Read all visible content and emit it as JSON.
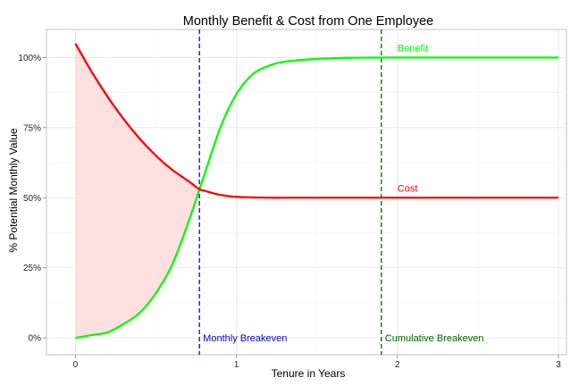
{
  "chart_data": {
    "type": "line",
    "title": "Monthly Benefit & Cost from One Employee",
    "xlabel": "Tenure in Years",
    "ylabel": "% Potential Monthly Value",
    "xlim": [
      -0.18,
      3.05
    ],
    "ylim": [
      -0.06,
      1.1
    ],
    "x_ticks": [
      0,
      1,
      2,
      3
    ],
    "x_tick_labels": [
      "0",
      "1",
      "2",
      "3"
    ],
    "y_ticks": [
      0,
      0.25,
      0.5,
      0.75,
      1.0
    ],
    "y_tick_labels": [
      "0%",
      "25%",
      "50%",
      "75%",
      "100%"
    ],
    "grid": true,
    "x": [
      0,
      0.1,
      0.2,
      0.3,
      0.4,
      0.5,
      0.6,
      0.7,
      0.77,
      0.8,
      0.9,
      1.0,
      1.1,
      1.2,
      1.3,
      1.5,
      1.7,
      2.0,
      2.5,
      3.0
    ],
    "series": [
      {
        "name": "Benefit",
        "color": "#00ff00",
        "values": [
          0.0,
          0.01,
          0.02,
          0.05,
          0.09,
          0.16,
          0.26,
          0.41,
          0.53,
          0.58,
          0.75,
          0.87,
          0.94,
          0.97,
          0.985,
          0.995,
          0.999,
          1.0,
          1.0,
          1.0
        ]
      },
      {
        "name": "Cost",
        "color": "#ff0000",
        "values": [
          1.05,
          0.95,
          0.86,
          0.78,
          0.71,
          0.65,
          0.6,
          0.56,
          0.53,
          0.525,
          0.51,
          0.503,
          0.501,
          0.5,
          0.5,
          0.5,
          0.5,
          0.5,
          0.5,
          0.5
        ]
      }
    ],
    "shaded_region": {
      "description": "area between Cost and Benefit before breakeven",
      "color": "#ffe0e0",
      "x_end": 0.77
    },
    "vlines": [
      {
        "x": 0.77,
        "label": "Monthly Breakeven",
        "color": "#0000ff"
      },
      {
        "x": 1.9,
        "label": "Cumulative Breakeven",
        "color": "#006400"
      }
    ]
  }
}
